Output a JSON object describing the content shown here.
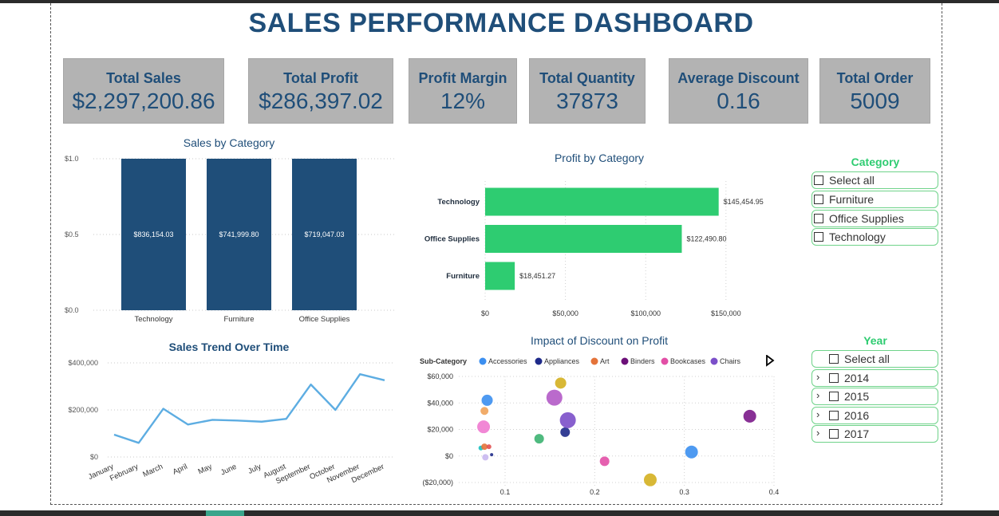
{
  "title": "SALES PERFORMANCE DASHBOARD",
  "kpis": [
    {
      "label": "Total Sales",
      "value": "$2,297,200.86"
    },
    {
      "label": "Total Profit",
      "value": "$286,397.02"
    },
    {
      "label": "Profit Margin",
      "value": "12%"
    },
    {
      "label": "Total Quantity",
      "value": "37873"
    },
    {
      "label": "Average Discount",
      "value": "0.16"
    },
    {
      "label": "Total Order",
      "value": "5009"
    }
  ],
  "slicers": {
    "category": {
      "title": "Category",
      "items": [
        "Select all",
        "Furniture",
        "Office Supplies",
        "Technology"
      ]
    },
    "year": {
      "title": "Year",
      "items": [
        "Select all",
        "2014",
        "2015",
        "2016",
        "2017"
      ]
    }
  },
  "colors": {
    "navy": "#1f4e79",
    "green": "#2ecc71",
    "line": "#5dade2",
    "kpi_bg": "#b3b3b3"
  },
  "chart_data": [
    {
      "type": "bar",
      "title": "Sales by Category",
      "categories": [
        "Technology",
        "Furniture",
        "Office Supplies"
      ],
      "values": [
        836154.03,
        741999.8,
        719047.03
      ],
      "data_labels": [
        "$836,154.03",
        "$741,999.80",
        "$719,047.03"
      ],
      "y_ticks": [
        "$1.0",
        "$0.5",
        "$0.0"
      ],
      "ylim": [
        0,
        1.0
      ],
      "grid": true
    },
    {
      "type": "bar",
      "orientation": "horizontal",
      "title": "Profit by Category",
      "categories": [
        "Technology",
        "Office Supplies",
        "Furniture"
      ],
      "values": [
        145454.95,
        122490.8,
        18451.27
      ],
      "data_labels": [
        "$145,454.95",
        "$122,490.80",
        "$18,451.27"
      ],
      "x_ticks": [
        "$0",
        "$50,000",
        "$100,000",
        "$150,000"
      ],
      "xlim": [
        0,
        165000
      ],
      "grid": true
    },
    {
      "type": "line",
      "title": "Sales Trend Over Time",
      "categories": [
        "January",
        "February",
        "March",
        "April",
        "May",
        "June",
        "July",
        "August",
        "September",
        "October",
        "November",
        "December"
      ],
      "values": [
        95000,
        60000,
        205000,
        138000,
        158000,
        155000,
        150000,
        162000,
        308000,
        200000,
        352000,
        326000
      ],
      "y_ticks": [
        "$400,000",
        "$200,000",
        "$0"
      ],
      "ylim": [
        0,
        400000
      ],
      "grid": true
    },
    {
      "type": "scatter",
      "title": "Impact of Discount on Profit",
      "legend_title": "Sub-Category",
      "legend": [
        {
          "name": "Accessories",
          "color": "#3b8ff0"
        },
        {
          "name": "Appliances",
          "color": "#1e2a8a"
        },
        {
          "name": "Art",
          "color": "#e4733a"
        },
        {
          "name": "Binders",
          "color": "#6b0f78"
        },
        {
          "name": "Bookcases",
          "color": "#e24fa6"
        },
        {
          "name": "Chairs",
          "color": "#7b4fc9"
        }
      ],
      "x_ticks": [
        "0.1",
        "0.2",
        "0.3",
        "0.4"
      ],
      "y_ticks": [
        "$60,000",
        "$40,000",
        "$20,000",
        "$0",
        "($20,000)"
      ],
      "xlim": [
        0.03,
        0.4
      ],
      "ylim": [
        -20000,
        60000
      ],
      "points": [
        {
          "x": 0.08,
          "y": 42000,
          "r": 7,
          "color": "#3b8ff0"
        },
        {
          "x": 0.073,
          "y": 6000,
          "r": 3,
          "color": "#17c0c0"
        },
        {
          "x": 0.077,
          "y": 34000,
          "r": 5,
          "color": "#f0a35a"
        },
        {
          "x": 0.076,
          "y": 22000,
          "r": 8,
          "color": "#f07ad0"
        },
        {
          "x": 0.077,
          "y": 7000,
          "r": 4,
          "color": "#e4733a"
        },
        {
          "x": 0.082,
          "y": 7000,
          "r": 3,
          "color": "#e25050"
        },
        {
          "x": 0.078,
          "y": -1000,
          "r": 4,
          "color": "#c8b8f0"
        },
        {
          "x": 0.085,
          "y": 1000,
          "r": 2,
          "color": "#1e2a8a"
        },
        {
          "x": 0.138,
          "y": 13000,
          "r": 6,
          "color": "#3cb371"
        },
        {
          "x": 0.155,
          "y": 44000,
          "r": 10,
          "color": "#b35ac7"
        },
        {
          "x": 0.162,
          "y": 55000,
          "r": 7,
          "color": "#d4b020"
        },
        {
          "x": 0.167,
          "y": 18000,
          "r": 6,
          "color": "#1e2a8a"
        },
        {
          "x": 0.17,
          "y": 27000,
          "r": 10,
          "color": "#7b4fc9"
        },
        {
          "x": 0.211,
          "y": -4000,
          "r": 6,
          "color": "#e24fa6"
        },
        {
          "x": 0.262,
          "y": -18000,
          "r": 8,
          "color": "#d4b020"
        },
        {
          "x": 0.308,
          "y": 3000,
          "r": 8,
          "color": "#3b8ff0"
        },
        {
          "x": 0.373,
          "y": 30000,
          "r": 8,
          "color": "#7b1a8a"
        }
      ],
      "grid": true
    }
  ]
}
